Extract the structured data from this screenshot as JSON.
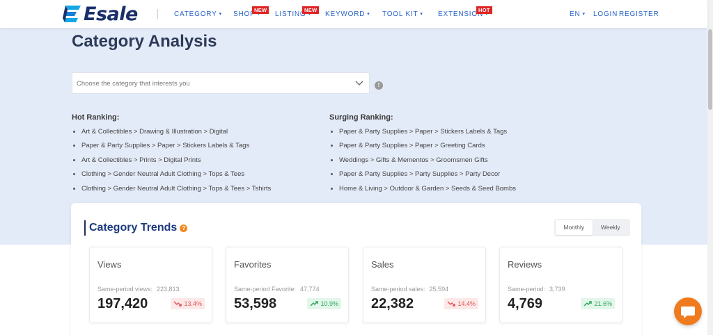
{
  "header": {
    "logo_text": "Esale",
    "nav": [
      {
        "label": "CATEGORY",
        "badge": ""
      },
      {
        "label": "SHOP",
        "badge": "NEW"
      },
      {
        "label": "LISTING",
        "badge": "NEW"
      },
      {
        "label": "KEYWORD",
        "badge": ""
      },
      {
        "label": "TOOL KIT",
        "badge": ""
      },
      {
        "label": "EXTENSION",
        "badge": "HOT"
      }
    ],
    "lang": "EN",
    "login": "LOGIN",
    "register": "REGISTER"
  },
  "page": {
    "title": "Category Analysis",
    "select_placeholder": "Choose the category that interests you"
  },
  "hot_ranking": {
    "title": "Hot Ranking:",
    "items": [
      "Art & Collectibles > Drawing & Illustration > Digital",
      "Paper & Party Supplies > Paper > Stickers Labels & Tags",
      "Art & Collectibles > Prints > Digital Prints",
      "Clothing > Gender Neutral Adult Clothing > Tops & Tees",
      "Clothing > Gender Neutral Adult Clothing > Tops & Tees > Tshirts"
    ]
  },
  "surging_ranking": {
    "title": "Surging Ranking:",
    "items": [
      "Paper & Party Supplies > Paper > Stickers Labels & Tags",
      "Paper & Party Supplies > Paper > Greeting Cards",
      "Weddings > Gifts & Mementos > Groomsmen Gifts",
      "Paper & Party Supplies > Party Supplies > Party Decor",
      "Home & Living > Outdoor & Garden > Seeds & Seed Bombs"
    ]
  },
  "trends": {
    "title": "Category Trends",
    "help_glyph": "?",
    "toggle": {
      "monthly": "Monthly",
      "weekly": "Weekly",
      "active": "monthly"
    },
    "stats": [
      {
        "label": "Views",
        "sub_label": "Same-period views:",
        "sub_value": "223,813",
        "value": "197,420",
        "change": "13.4%",
        "direction": "down"
      },
      {
        "label": "Favorites",
        "sub_label": "Same-period Favorite:",
        "sub_value": "47,774",
        "value": "53,598",
        "change": "10.9%",
        "direction": "up"
      },
      {
        "label": "Sales",
        "sub_label": "Same-period sales:",
        "sub_value": "25,594",
        "value": "22,382",
        "change": "14.4%",
        "direction": "down"
      },
      {
        "label": "Reviews",
        "sub_label": "Same-period:",
        "sub_value": "3,739",
        "value": "4,769",
        "change": "21.6%",
        "direction": "up"
      }
    ]
  },
  "colors": {
    "brand": "#2a62c9",
    "hero_bg": "#e4ebf8",
    "down": "#e05555",
    "up": "#2fa760",
    "chat": "#f07b1e"
  }
}
